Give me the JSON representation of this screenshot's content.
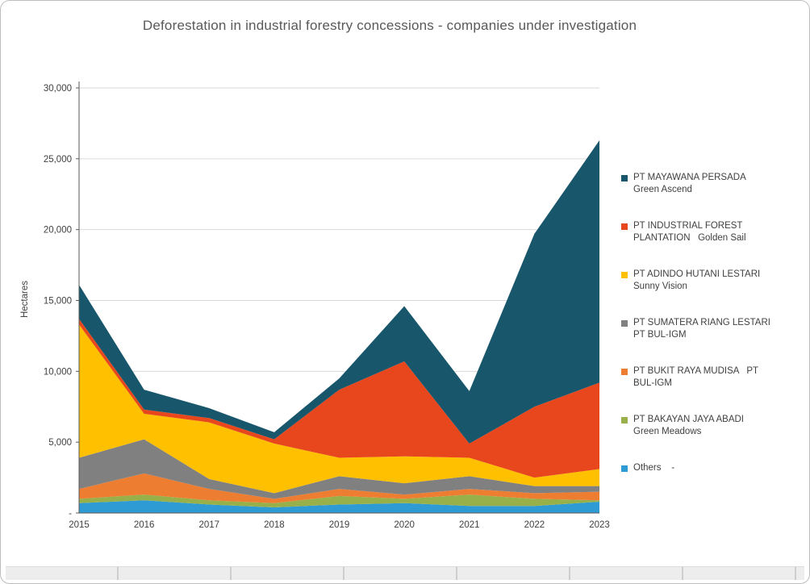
{
  "chart_data": {
    "type": "area",
    "stacked": true,
    "title": "Deforestation in industrial forestry concessions - companies under investigation",
    "xlabel": "",
    "ylabel": "Hectares",
    "ylim": [
      0,
      30000
    ],
    "grid": true,
    "legend_position": "right",
    "categories": [
      "2015",
      "2016",
      "2017",
      "2018",
      "2019",
      "2020",
      "2021",
      "2022",
      "2023"
    ],
    "y_ticks": [
      {
        "value": 0,
        "label": "-"
      },
      {
        "value": 5000,
        "label": "5,000"
      },
      {
        "value": 10000,
        "label": "10,000"
      },
      {
        "value": 15000,
        "label": "15,000"
      },
      {
        "value": 20000,
        "label": "20,000"
      },
      {
        "value": 25000,
        "label": "25,000"
      },
      {
        "value": 30000,
        "label": "30,000"
      }
    ],
    "series": [
      {
        "name": "PT MAYAWANA PERSADA  Green Ascend",
        "color": "#17566b",
        "values": [
          2400,
          1400,
          700,
          500,
          800,
          3900,
          3700,
          12200,
          17100
        ]
      },
      {
        "name": "PT INDUSTRIAL FOREST PLANTATION   Golden Sail",
        "color": "#e8461d",
        "values": [
          400,
          300,
          300,
          300,
          4800,
          6700,
          1000,
          5000,
          6100
        ]
      },
      {
        "name": "PT ADINDO HUTANI LESTARI  Sunny Vision",
        "color": "#ffc000",
        "values": [
          9400,
          1800,
          4000,
          3500,
          1300,
          1900,
          1300,
          600,
          1200
        ]
      },
      {
        "name": "PT SUMATERA RIANG LESTARI   PT BUL-IGM",
        "color": "#808080",
        "values": [
          2200,
          2400,
          700,
          400,
          900,
          800,
          900,
          500,
          400
        ]
      },
      {
        "name": "PT BUKIT RAYA MUDISA   PT BUL-IGM",
        "color": "#ed7d31",
        "values": [
          700,
          1500,
          800,
          300,
          500,
          300,
          400,
          400,
          600
        ]
      },
      {
        "name": "PT BAKAYAN JAYA ABADI  Green Meadows",
        "color": "#97b04a",
        "values": [
          300,
          400,
          300,
          300,
          600,
          300,
          800,
          500,
          100
        ]
      },
      {
        "name": "Others    -",
        "color": "#2e9bd4",
        "values": [
          700,
          900,
          600,
          400,
          600,
          700,
          500,
          500,
          800
        ]
      }
    ]
  },
  "colors": {
    "gridline": "#d9d9d9",
    "axis": "#595959",
    "title_text": "#595959",
    "tick_text": "#404040",
    "frame_border": "#bdbdbd"
  }
}
